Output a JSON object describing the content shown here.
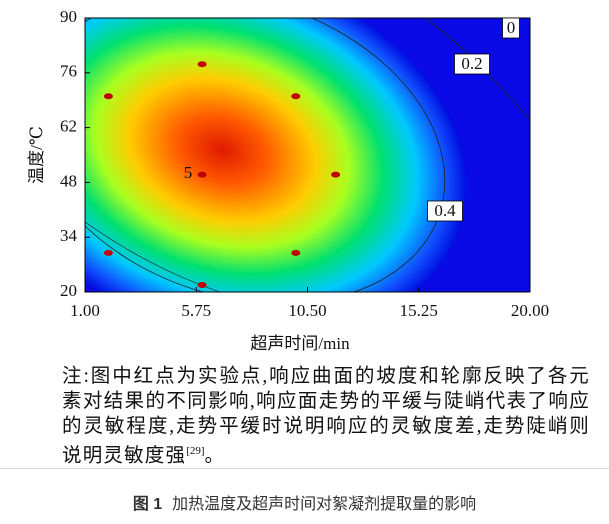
{
  "chart_data": {
    "type": "contour",
    "xlabel": "超声时间/min",
    "ylabel": "温度/℃",
    "xlim": [
      1,
      20
    ],
    "xticks": [
      {
        "value": 1,
        "label": "1.00"
      },
      {
        "value": 5.75,
        "label": "5.75"
      },
      {
        "value": 10.5,
        "label": "10.50"
      },
      {
        "value": 15.25,
        "label": "15.25"
      },
      {
        "value": 20,
        "label": "20.00"
      }
    ],
    "ylim": [
      20,
      90
    ],
    "yticks": [
      20,
      34,
      48,
      62,
      76,
      90
    ],
    "contour_labels": [
      0,
      0.2,
      0.4,
      5
    ],
    "points": {
      "x": [
        2,
        6,
        10,
        11.7,
        6,
        2,
        10,
        6
      ],
      "y": [
        70,
        78.2,
        70,
        50,
        50,
        30,
        30,
        21.8
      ]
    },
    "point_color": "#c00000"
  },
  "note": {
    "text": "注:图中红点为实验点,响应曲面的坡度和轮廓反映了各元素对结果的不同影响,响应面走势的平缓与陡峭代表了响应的灵敏程度,走势平缓时说明响应的灵敏度差,走势陡峭则说明灵敏度强",
    "ref": "[29]",
    "end": "。"
  },
  "caption": {
    "label": "图 1",
    "text": "加热温度及超声时间对絮凝剂提取量的影响"
  }
}
